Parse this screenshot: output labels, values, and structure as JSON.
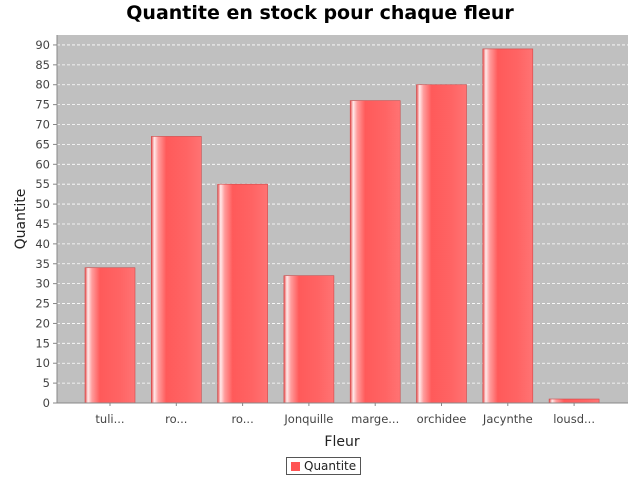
{
  "chart_data": {
    "type": "bar",
    "title": "Quantite en stock pour chaque fleur",
    "xlabel": "Fleur",
    "ylabel": "Quantite",
    "categories": [
      "tuli...",
      "ro...",
      "ro...",
      "Jonquille",
      "marge...",
      "orchidee",
      "Jacynthe",
      "lousd..."
    ],
    "series": [
      {
        "name": "Quantite",
        "values": [
          34,
          67,
          55,
          32,
          76,
          80,
          89,
          1
        ]
      }
    ],
    "ylim": [
      0,
      92.5
    ],
    "yticks": [
      0,
      5,
      10,
      15,
      20,
      25,
      30,
      35,
      40,
      45,
      50,
      55,
      60,
      65,
      70,
      75,
      80,
      85,
      90
    ],
    "grid": true,
    "legend": "bottom-center",
    "colors": {
      "bar": "#ff5555",
      "plot_background": "#c0c0c0",
      "grid": "#ffffff"
    }
  }
}
